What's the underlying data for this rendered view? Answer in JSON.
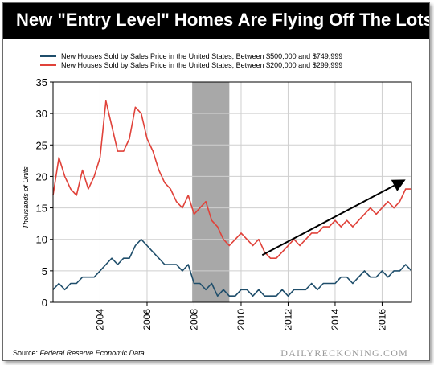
{
  "header": {
    "title": "New \"Entry Level\" Homes Are Flying Off The Lots"
  },
  "footer": {
    "source_label": "Source:",
    "source_name": "Federal Reserve Economic Data",
    "watermark": "DAILYRECKONING.COM"
  },
  "colors": {
    "background": "#ffffff",
    "title_bar": "#000000",
    "series_high": "#1f4e6b",
    "series_low": "#e0423a",
    "recession": "#a8a8a8",
    "trend_arrow": "#000000"
  },
  "chart_data": {
    "type": "line",
    "title": "New \"Entry Level\" Homes Are Flying Off The Lots",
    "ylabel": "Thousands of Units",
    "xlabel": "",
    "xlim": [
      2002.0,
      2017.25
    ],
    "ylim": [
      0,
      35
    ],
    "xticks": [
      2004,
      2006,
      2008,
      2010,
      2012,
      2014,
      2016
    ],
    "yticks": [
      0,
      5,
      10,
      15,
      20,
      25,
      30,
      35
    ],
    "grid": true,
    "legend_position": "top",
    "recession_shading": [
      2007.92,
      2009.5
    ],
    "trend_arrow": {
      "from": [
        2010.9,
        7.5
      ],
      "to": [
        2017.0,
        19.5
      ]
    },
    "series": [
      {
        "name": "New Houses Sold by Sales Price in the United States, Between $500,000 and $749,999",
        "color": "#1f4e6b",
        "x": [
          2002.0,
          2002.25,
          2002.5,
          2002.75,
          2003.0,
          2003.25,
          2003.5,
          2003.75,
          2004.0,
          2004.25,
          2004.5,
          2004.75,
          2005.0,
          2005.25,
          2005.5,
          2005.75,
          2006.0,
          2006.25,
          2006.5,
          2006.75,
          2007.0,
          2007.25,
          2007.5,
          2007.75,
          2008.0,
          2008.25,
          2008.5,
          2008.75,
          2009.0,
          2009.25,
          2009.5,
          2009.75,
          2010.0,
          2010.25,
          2010.5,
          2010.75,
          2011.0,
          2011.25,
          2011.5,
          2011.75,
          2012.0,
          2012.25,
          2012.5,
          2012.75,
          2013.0,
          2013.25,
          2013.5,
          2013.75,
          2014.0,
          2014.25,
          2014.5,
          2014.75,
          2015.0,
          2015.25,
          2015.5,
          2015.75,
          2016.0,
          2016.25,
          2016.5,
          2016.75,
          2017.0,
          2017.25
        ],
        "values": [
          2,
          3,
          2,
          3,
          3,
          4,
          4,
          4,
          5,
          6,
          7,
          6,
          7,
          7,
          9,
          10,
          9,
          8,
          7,
          6,
          6,
          6,
          5,
          6,
          3,
          3,
          2,
          3,
          1,
          2,
          1,
          1,
          2,
          2,
          1,
          2,
          1,
          1,
          1,
          2,
          1,
          2,
          2,
          2,
          3,
          2,
          3,
          3,
          3,
          4,
          4,
          3,
          4,
          5,
          4,
          4,
          5,
          4,
          5,
          5,
          6,
          5
        ]
      },
      {
        "name": "New Houses Sold by Sales Price in the United States, Between $200,000 and $299,999",
        "color": "#e0423a",
        "x": [
          2002.0,
          2002.25,
          2002.5,
          2002.75,
          2003.0,
          2003.25,
          2003.5,
          2003.75,
          2004.0,
          2004.25,
          2004.5,
          2004.75,
          2005.0,
          2005.25,
          2005.5,
          2005.75,
          2006.0,
          2006.25,
          2006.5,
          2006.75,
          2007.0,
          2007.25,
          2007.5,
          2007.75,
          2008.0,
          2008.25,
          2008.5,
          2008.75,
          2009.0,
          2009.25,
          2009.5,
          2009.75,
          2010.0,
          2010.25,
          2010.5,
          2010.75,
          2011.0,
          2011.25,
          2011.5,
          2011.75,
          2012.0,
          2012.25,
          2012.5,
          2012.75,
          2013.0,
          2013.25,
          2013.5,
          2013.75,
          2014.0,
          2014.25,
          2014.5,
          2014.75,
          2015.0,
          2015.25,
          2015.5,
          2015.75,
          2016.0,
          2016.25,
          2016.5,
          2016.75,
          2017.0,
          2017.25
        ],
        "values": [
          17,
          23,
          20,
          18,
          17,
          21,
          18,
          20,
          23,
          32,
          28,
          24,
          24,
          26,
          31,
          30,
          26,
          24,
          21,
          19,
          18,
          16,
          15,
          17,
          14,
          15,
          16,
          13,
          12,
          10,
          9,
          10,
          11,
          10,
          9,
          10,
          8,
          7,
          7,
          8,
          9,
          10,
          9,
          10,
          11,
          11,
          12,
          12,
          13,
          12,
          13,
          12,
          13,
          14,
          15,
          14,
          15,
          16,
          15,
          16,
          18,
          18
        ]
      }
    ]
  }
}
